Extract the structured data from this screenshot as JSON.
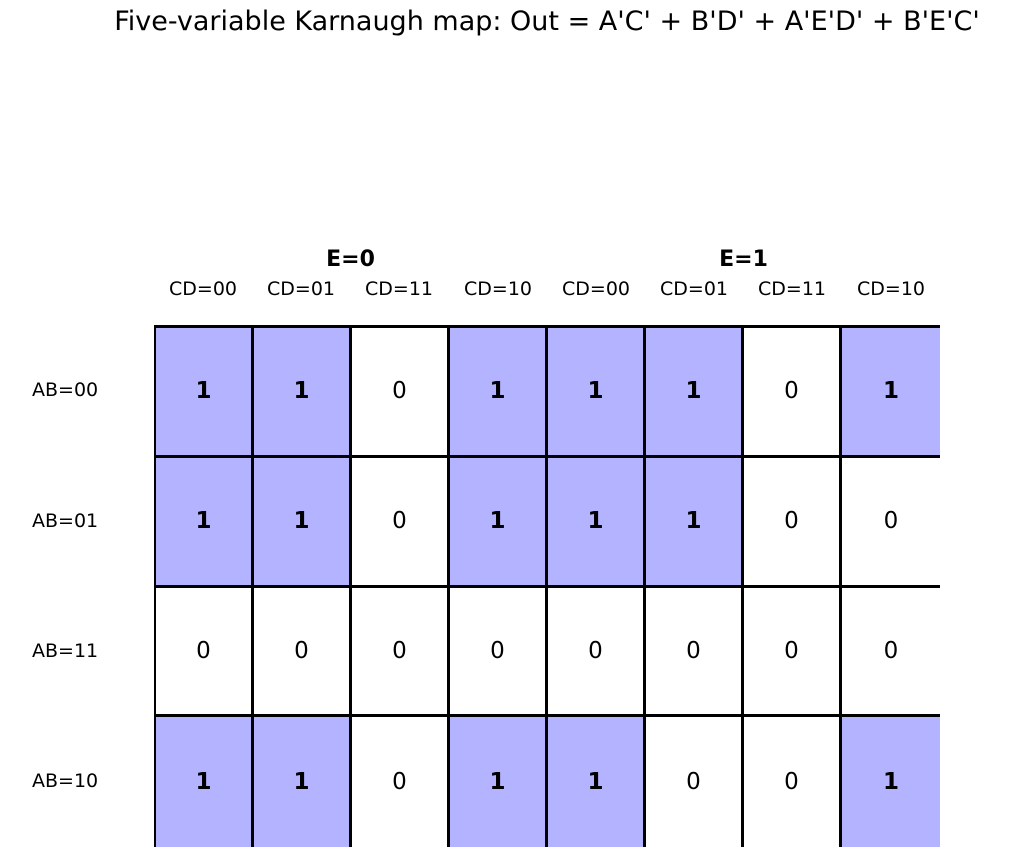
{
  "title": "Five-variable Karnaugh map: Out = A'C' + B'D' + A'E'D' + B'E'C'",
  "groups": [
    {
      "label": "E=0"
    },
    {
      "label": "E=1"
    }
  ],
  "columns": [
    "CD=00",
    "CD=01",
    "CD=11",
    "CD=10",
    "CD=00",
    "CD=01",
    "CD=11",
    "CD=10"
  ],
  "rows": [
    {
      "label": "AB=00",
      "values": [
        "1",
        "1",
        "0",
        "1",
        "1",
        "1",
        "0",
        "1"
      ]
    },
    {
      "label": "AB=01",
      "values": [
        "1",
        "1",
        "0",
        "1",
        "1",
        "1",
        "0",
        "0"
      ]
    },
    {
      "label": "AB=11",
      "values": [
        "0",
        "0",
        "0",
        "0",
        "0",
        "0",
        "0",
        "0"
      ]
    },
    {
      "label": "AB=10",
      "values": [
        "1",
        "1",
        "0",
        "1",
        "1",
        "0",
        "0",
        "1"
      ]
    }
  ],
  "colors": {
    "highlight": "#b3b3ff",
    "grid": "#000000"
  }
}
